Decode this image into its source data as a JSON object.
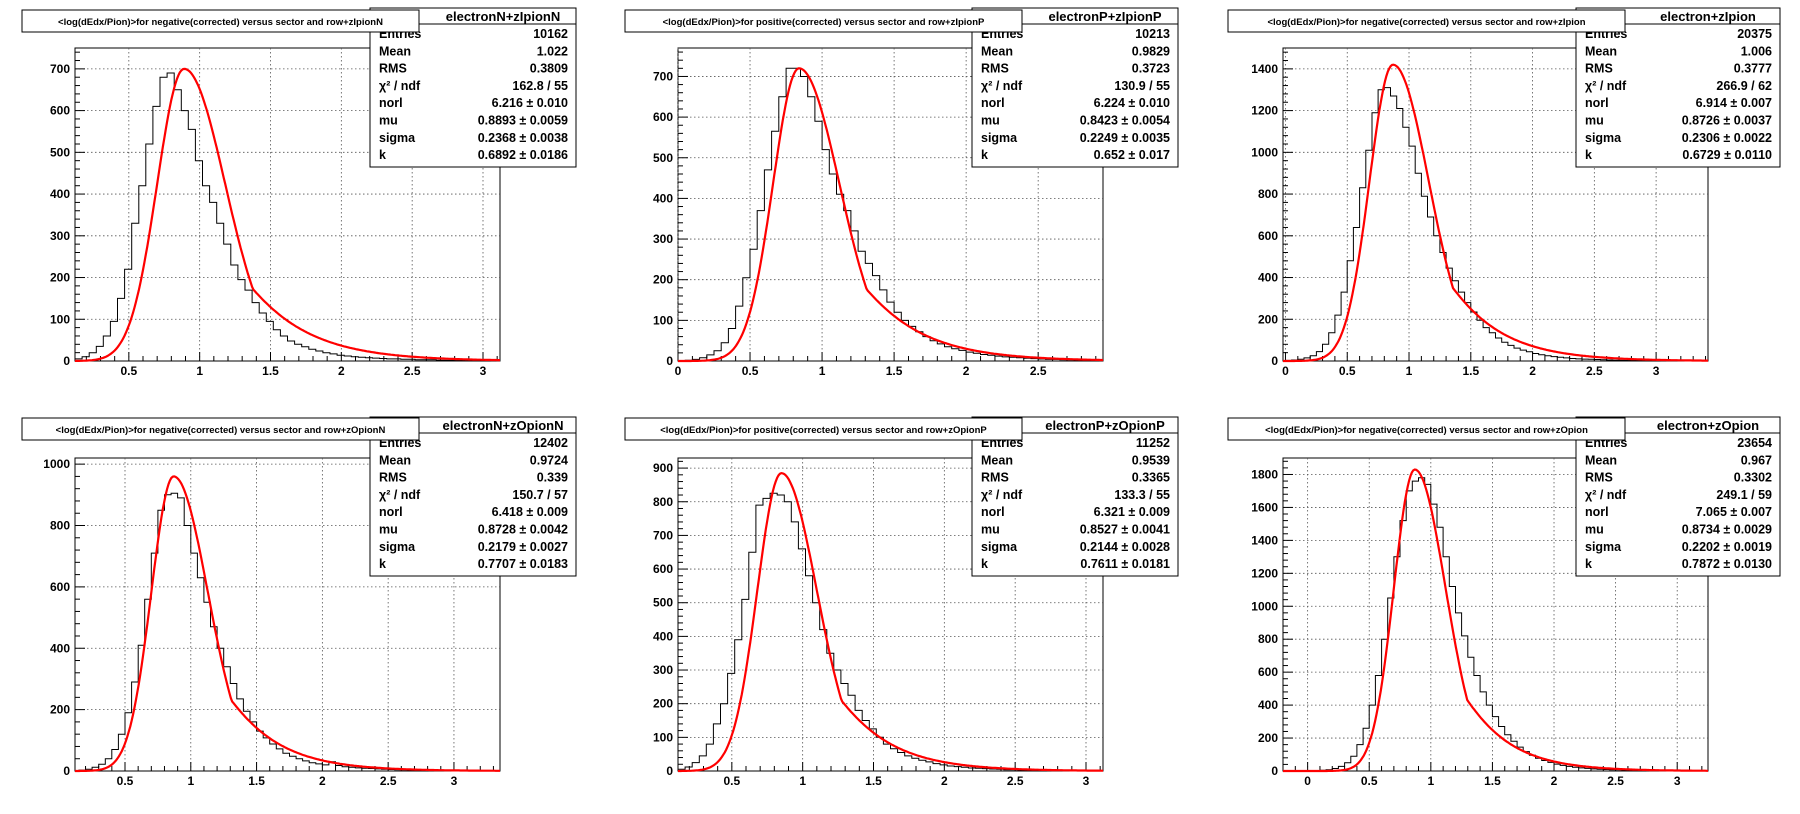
{
  "chart_data": [
    {
      "type": "histogram",
      "title": "<log(dEdx/Pion)>for negative(corrected) versus sector and row+zIpionN",
      "stats_name": "electronN+zIpionN",
      "stats": [
        {
          "label": "Entries",
          "value": "10162"
        },
        {
          "label": "Mean",
          "value": "1.022"
        },
        {
          "label": "RMS",
          "value": "0.3809"
        },
        {
          "label": "χ² / ndf",
          "value": "162.8 / 55"
        },
        {
          "label": "norl",
          "value": "6.216 ± 0.010"
        },
        {
          "label": "mu",
          "value": "0.8893 ± 0.0059"
        },
        {
          "label": "sigma",
          "value": "0.2368 ± 0.0038"
        },
        {
          "label": "k",
          "value": "0.6892 ± 0.0186"
        }
      ],
      "xlim": [
        0.12,
        3.12
      ],
      "ylim": [
        0,
        750
      ],
      "x_ticks": [
        "0.5",
        "1",
        "1.5",
        "2",
        "2.5",
        "3"
      ],
      "x_tick_values": [
        0.5,
        1,
        1.5,
        2,
        2.5,
        3
      ],
      "y_ticks": [
        "0",
        "100",
        "200",
        "300",
        "400",
        "500",
        "600",
        "700"
      ],
      "y_tick_values": [
        0,
        100,
        200,
        300,
        400,
        500,
        600,
        700
      ],
      "fit": {
        "peak": 700,
        "mu": 0.89,
        "sig_left": 0.19,
        "sig_right": 0.29
      },
      "bin_width": 0.05,
      "hist": {
        "x0": 0.12,
        "values": [
          5,
          10,
          20,
          35,
          60,
          95,
          150,
          220,
          330,
          420,
          520,
          610,
          680,
          690,
          650,
          600,
          555,
          480,
          420,
          380,
          330,
          280,
          230,
          195,
          170,
          140,
          115,
          95,
          75,
          60,
          48,
          40,
          34,
          28,
          24,
          20,
          17,
          14,
          12,
          10,
          9,
          8,
          7,
          6,
          5,
          5,
          4,
          4,
          3,
          3,
          3,
          2,
          2,
          2,
          2,
          1,
          1,
          1,
          1,
          1
        ]
      }
    },
    {
      "type": "histogram",
      "title": "<log(dEdx/Pion)>for positive(corrected) versus sector and row+zIpionP",
      "stats_name": "electronP+zIpionP",
      "stats": [
        {
          "label": "Entries",
          "value": "10213"
        },
        {
          "label": "Mean",
          "value": "0.9829"
        },
        {
          "label": "RMS",
          "value": "0.3723"
        },
        {
          "label": "χ² / ndf",
          "value": "130.9 / 55"
        },
        {
          "label": "norl",
          "value": "6.224 ± 0.010"
        },
        {
          "label": "mu",
          "value": "0.8423 ± 0.0054"
        },
        {
          "label": "sigma",
          "value": "0.2249 ± 0.0035"
        },
        {
          "label": "k",
          "value": "0.652 ± 0.017"
        }
      ],
      "xlim": [
        0,
        2.95
      ],
      "ylim": [
        0,
        770
      ],
      "x_ticks": [
        "0",
        "0.5",
        "1",
        "1.5",
        "2",
        "2.5"
      ],
      "x_tick_values": [
        0,
        0.5,
        1,
        1.5,
        2,
        2.5
      ],
      "y_ticks": [
        "0",
        "100",
        "200",
        "300",
        "400",
        "500",
        "600",
        "700"
      ],
      "y_tick_values": [
        0,
        100,
        200,
        300,
        400,
        500,
        600,
        700
      ],
      "fit": {
        "peak": 720,
        "mu": 0.84,
        "sig_left": 0.18,
        "sig_right": 0.28
      },
      "bin_width": 0.05,
      "hist": {
        "x0": 0.05,
        "values": [
          2,
          4,
          8,
          15,
          25,
          45,
          80,
          135,
          205,
          275,
          370,
          470,
          565,
          650,
          720,
          720,
          700,
          650,
          590,
          520,
          460,
          410,
          370,
          320,
          270,
          240,
          210,
          175,
          145,
          120,
          100,
          85,
          72,
          60,
          50,
          42,
          35,
          30,
          26,
          22,
          19,
          16,
          14,
          12,
          10,
          9,
          8,
          7,
          6,
          5,
          4,
          4,
          3,
          3,
          2,
          2,
          2,
          1
        ]
      }
    },
    {
      "type": "histogram",
      "title": "<log(dEdx/Pion)>for negative(corrected) versus sector and row+zIpion",
      "stats_name": "electron+zIpion",
      "stats": [
        {
          "label": "Entries",
          "value": "20375"
        },
        {
          "label": "Mean",
          "value": "1.006"
        },
        {
          "label": "RMS",
          "value": "0.3777"
        },
        {
          "label": "χ² / ndf",
          "value": "266.9 / 62"
        },
        {
          "label": "norl",
          "value": "6.914 ± 0.007"
        },
        {
          "label": "mu",
          "value": "0.8726 ± 0.0037"
        },
        {
          "label": "sigma",
          "value": "0.2306 ± 0.0022"
        },
        {
          "label": "k",
          "value": "0.6729 ± 0.0110"
        }
      ],
      "xlim": [
        -0.02,
        3.42
      ],
      "ylim": [
        0,
        1500
      ],
      "x_ticks": [
        "0",
        "0.5",
        "1",
        "1.5",
        "2",
        "2.5",
        "3"
      ],
      "x_tick_values": [
        0,
        0.5,
        1,
        1.5,
        2,
        2.5,
        3
      ],
      "y_ticks": [
        "0",
        "200",
        "400",
        "600",
        "800",
        "1000",
        "1200",
        "1400"
      ],
      "y_tick_values": [
        0,
        200,
        400,
        600,
        800,
        1000,
        1200,
        1400
      ],
      "fit": {
        "peak": 1420,
        "mu": 0.87,
        "sig_left": 0.19,
        "sig_right": 0.29
      },
      "bin_width": 0.05,
      "hist": {
        "x0": 0.0,
        "values": [
          3,
          5,
          8,
          15,
          25,
          45,
          80,
          135,
          220,
          330,
          480,
          640,
          830,
          1010,
          1190,
          1300,
          1310,
          1270,
          1210,
          1120,
          1030,
          900,
          790,
          690,
          600,
          520,
          445,
          385,
          330,
          280,
          235,
          195,
          160,
          135,
          110,
          90,
          75,
          62,
          52,
          44,
          36,
          30,
          25,
          21,
          18,
          15,
          12,
          10,
          9,
          8,
          7,
          6,
          5,
          4,
          4,
          3,
          3,
          2,
          2,
          2,
          1,
          1,
          1,
          1,
          1
        ]
      }
    },
    {
      "type": "histogram",
      "title": "<log(dEdx/Pion)>for negative(corrected) versus sector and row+zOpionN",
      "stats_name": "electronN+zOpionN",
      "stats": [
        {
          "label": "Entries",
          "value": "12402"
        },
        {
          "label": "Mean",
          "value": "0.9724"
        },
        {
          "label": "RMS",
          "value": "0.339"
        },
        {
          "label": "χ² / ndf",
          "value": "150.7 / 57"
        },
        {
          "label": "norl",
          "value": "6.418 ± 0.009"
        },
        {
          "label": "mu",
          "value": "0.8728 ± 0.0042"
        },
        {
          "label": "sigma",
          "value": "0.2179 ± 0.0027"
        },
        {
          "label": "k",
          "value": "0.7707 ± 0.0183"
        }
      ],
      "xlim": [
        0.12,
        3.35
      ],
      "ylim": [
        0,
        1020
      ],
      "x_ticks": [
        "0.5",
        "1",
        "1.5",
        "2",
        "2.5",
        "3"
      ],
      "x_tick_values": [
        0.5,
        1,
        1.5,
        2,
        2.5,
        3
      ],
      "y_ticks": [
        "0",
        "200",
        "400",
        "600",
        "800",
        "1000"
      ],
      "y_tick_values": [
        0,
        200,
        400,
        600,
        800,
        1000
      ],
      "fit": {
        "peak": 960,
        "mu": 0.87,
        "sig_left": 0.17,
        "sig_right": 0.26
      },
      "bin_width": 0.05,
      "hist": {
        "x0": 0.15,
        "values": [
          3,
          6,
          12,
          22,
          40,
          70,
          120,
          190,
          290,
          410,
          560,
          710,
          850,
          900,
          905,
          890,
          800,
          710,
          630,
          550,
          470,
          400,
          340,
          285,
          235,
          195,
          160,
          130,
          108,
          88,
          72,
          58,
          48,
          40,
          33,
          27,
          23,
          20,
          30,
          18,
          14,
          12,
          10,
          9,
          8,
          7,
          6,
          5,
          4,
          4,
          3,
          3,
          2,
          2,
          2,
          1,
          1,
          1,
          1,
          1,
          1,
          1,
          1,
          1
        ]
      }
    },
    {
      "type": "histogram",
      "title": "<log(dEdx/Pion)>for positive(corrected) versus sector and row+zOpionP",
      "stats_name": "electronP+zOpionP",
      "stats": [
        {
          "label": "Entries",
          "value": "11252"
        },
        {
          "label": "Mean",
          "value": "0.9539"
        },
        {
          "label": "RMS",
          "value": "0.3365"
        },
        {
          "label": "χ² / ndf",
          "value": "133.3 / 55"
        },
        {
          "label": "norl",
          "value": "6.321 ± 0.009"
        },
        {
          "label": "mu",
          "value": "0.8527 ± 0.0041"
        },
        {
          "label": "sigma",
          "value": "0.2144 ± 0.0028"
        },
        {
          "label": "k",
          "value": "0.7611 ± 0.0181"
        }
      ],
      "xlim": [
        0.12,
        3.12
      ],
      "ylim": [
        0,
        930
      ],
      "x_ticks": [
        "0.5",
        "1",
        "1.5",
        "2",
        "2.5",
        "3"
      ],
      "x_tick_values": [
        0.5,
        1,
        1.5,
        2,
        2.5,
        3
      ],
      "y_ticks": [
        "0",
        "100",
        "200",
        "300",
        "400",
        "500",
        "600",
        "700",
        "800",
        "900"
      ],
      "y_tick_values": [
        0,
        100,
        200,
        300,
        400,
        500,
        600,
        700,
        800,
        900
      ],
      "fit": {
        "peak": 885,
        "mu": 0.85,
        "sig_left": 0.17,
        "sig_right": 0.25
      },
      "bin_width": 0.05,
      "hist": {
        "x0": 0.12,
        "values": [
          5,
          12,
          25,
          45,
          80,
          140,
          200,
          290,
          390,
          510,
          650,
          790,
          810,
          825,
          820,
          800,
          740,
          660,
          580,
          500,
          420,
          350,
          300,
          260,
          225,
          180,
          150,
          125,
          100,
          80,
          66,
          55,
          45,
          38,
          32,
          27,
          22,
          18,
          15,
          13,
          11,
          9,
          8,
          7,
          6,
          5,
          4,
          4,
          3,
          3,
          2,
          2,
          2,
          1,
          1,
          1,
          1,
          1,
          1,
          1
        ]
      }
    },
    {
      "type": "histogram",
      "title": "<log(dEdx/Pion)>for negative(corrected) versus sector and row+zOpion",
      "stats_name": "electron+zOpion",
      "stats": [
        {
          "label": "Entries",
          "value": "23654"
        },
        {
          "label": "Mean",
          "value": "0.967"
        },
        {
          "label": "RMS",
          "value": "0.3302"
        },
        {
          "label": "χ² / ndf",
          "value": "249.1 / 59"
        },
        {
          "label": "norl",
          "value": "7.065 ± 0.007"
        },
        {
          "label": "mu",
          "value": "0.8734 ± 0.0029"
        },
        {
          "label": "sigma",
          "value": "0.2202 ± 0.0019"
        },
        {
          "label": "k",
          "value": "0.7872 ± 0.0130"
        }
      ],
      "xlim": [
        -0.2,
        3.25
      ],
      "ylim": [
        0,
        1900
      ],
      "x_ticks": [
        "0",
        "0.5",
        "1",
        "1.5",
        "2",
        "2.5",
        "3"
      ],
      "x_tick_values": [
        0,
        0.5,
        1,
        1.5,
        2,
        2.5,
        3
      ],
      "y_ticks": [
        "0",
        "200",
        "400",
        "600",
        "800",
        "1000",
        "1200",
        "1400",
        "1600",
        "1800"
      ],
      "y_tick_values": [
        0,
        200,
        400,
        600,
        800,
        1000,
        1200,
        1400,
        1600,
        1800
      ],
      "fit": {
        "peak": 1830,
        "mu": 0.87,
        "sig_left": 0.17,
        "sig_right": 0.25
      },
      "bin_width": 0.05,
      "hist": {
        "x0": 0.05,
        "values": [
          2,
          4,
          8,
          15,
          28,
          50,
          90,
          160,
          260,
          400,
          580,
          800,
          1050,
          1300,
          1520,
          1700,
          1760,
          1780,
          1740,
          1620,
          1480,
          1300,
          1120,
          960,
          820,
          690,
          580,
          480,
          400,
          330,
          270,
          220,
          180,
          145,
          118,
          96,
          78,
          64,
          52,
          42,
          34,
          28,
          23,
          19,
          16,
          13,
          11,
          9,
          8,
          7,
          6,
          5,
          4,
          4,
          3,
          3,
          2,
          2,
          2,
          1,
          1,
          1,
          1
        ]
      }
    }
  ]
}
